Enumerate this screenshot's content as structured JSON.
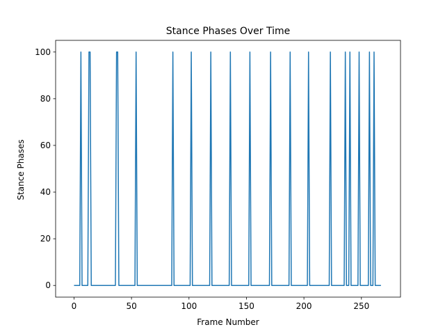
{
  "chart_data": {
    "type": "line",
    "title": "Stance Phases Over Time",
    "xlabel": "Frame Number",
    "ylabel": "Stance Phases",
    "xlim": [
      -16,
      284
    ],
    "ylim": [
      -5,
      105
    ],
    "x_ticks": [
      0,
      50,
      100,
      150,
      200,
      250
    ],
    "y_ticks": [
      0,
      20,
      40,
      60,
      80,
      100
    ],
    "grid": false,
    "series": [
      {
        "color": "#1f77b4",
        "x_start": 0,
        "x_end": 267,
        "step": 1,
        "base_value": 0,
        "peak_value": 100,
        "peak_frames": [
          6,
          13,
          14,
          37,
          38,
          54,
          86,
          102,
          119,
          136,
          153,
          171,
          188,
          204,
          223,
          236,
          240,
          248,
          257,
          261
        ]
      }
    ]
  }
}
